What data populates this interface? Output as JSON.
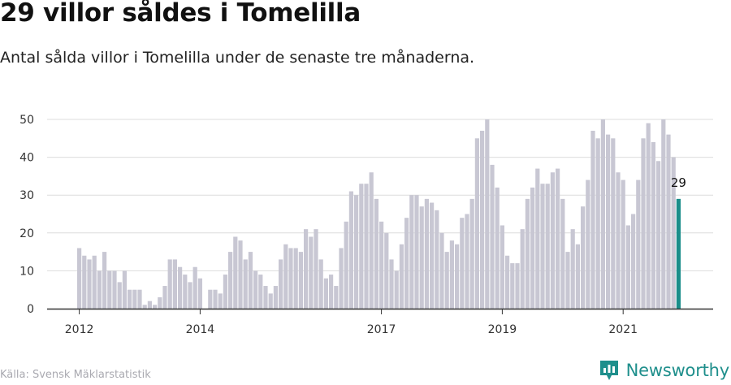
{
  "header": {
    "title": "29 villor såldes i Tomelilla",
    "subtitle": "Antal sålda villor i Tomelilla under de senaste tre månaderna."
  },
  "footer": {
    "source": "Källa: Svensk Mäklarstatistik",
    "brand": "Newsworthy",
    "brand_icon": "newsworthy-logo-icon"
  },
  "colors": {
    "bar": "#c8c7d3",
    "highlight": "#1a8e8a",
    "grid": "#dcdcdc",
    "axis": "#333333",
    "brand": "#1f8f8c"
  },
  "chart_data": {
    "type": "bar",
    "title": "29 villor såldes i Tomelilla",
    "subtitle": "Antal sålda villor i Tomelilla under de senaste tre månaderna.",
    "xlabel": "",
    "ylabel": "",
    "ylim": [
      0,
      50
    ],
    "yticks": [
      0,
      10,
      20,
      30,
      40,
      50
    ],
    "xticks": [
      {
        "label": "2012",
        "index": 0
      },
      {
        "label": "2014",
        "index": 24
      },
      {
        "label": "2017",
        "index": 60
      },
      {
        "label": "2019",
        "index": 84
      },
      {
        "label": "2021",
        "index": 108
      }
    ],
    "grid": true,
    "values": [
      16,
      14,
      13,
      14,
      10,
      15,
      10,
      10,
      7,
      10,
      5,
      5,
      5,
      1,
      2,
      1,
      3,
      6,
      13,
      13,
      11,
      9,
      7,
      11,
      8,
      0,
      5,
      5,
      4,
      9,
      15,
      19,
      18,
      13,
      15,
      10,
      9,
      6,
      4,
      6,
      13,
      17,
      16,
      16,
      15,
      21,
      19,
      21,
      13,
      8,
      9,
      6,
      16,
      23,
      31,
      30,
      33,
      33,
      36,
      29,
      23,
      20,
      13,
      10,
      17,
      24,
      30,
      30,
      27,
      29,
      28,
      26,
      20,
      15,
      18,
      17,
      24,
      25,
      29,
      45,
      47,
      50,
      38,
      32,
      22,
      14,
      12,
      12,
      21,
      29,
      32,
      37,
      33,
      33,
      36,
      37,
      29,
      15,
      21,
      17,
      27,
      34,
      47,
      45,
      50,
      46,
      45,
      36,
      34,
      22,
      25,
      34,
      45,
      49,
      44,
      39,
      50,
      46,
      40,
      29
    ],
    "highlight_index": 119,
    "annotation": {
      "label": "29",
      "index": 119
    }
  }
}
